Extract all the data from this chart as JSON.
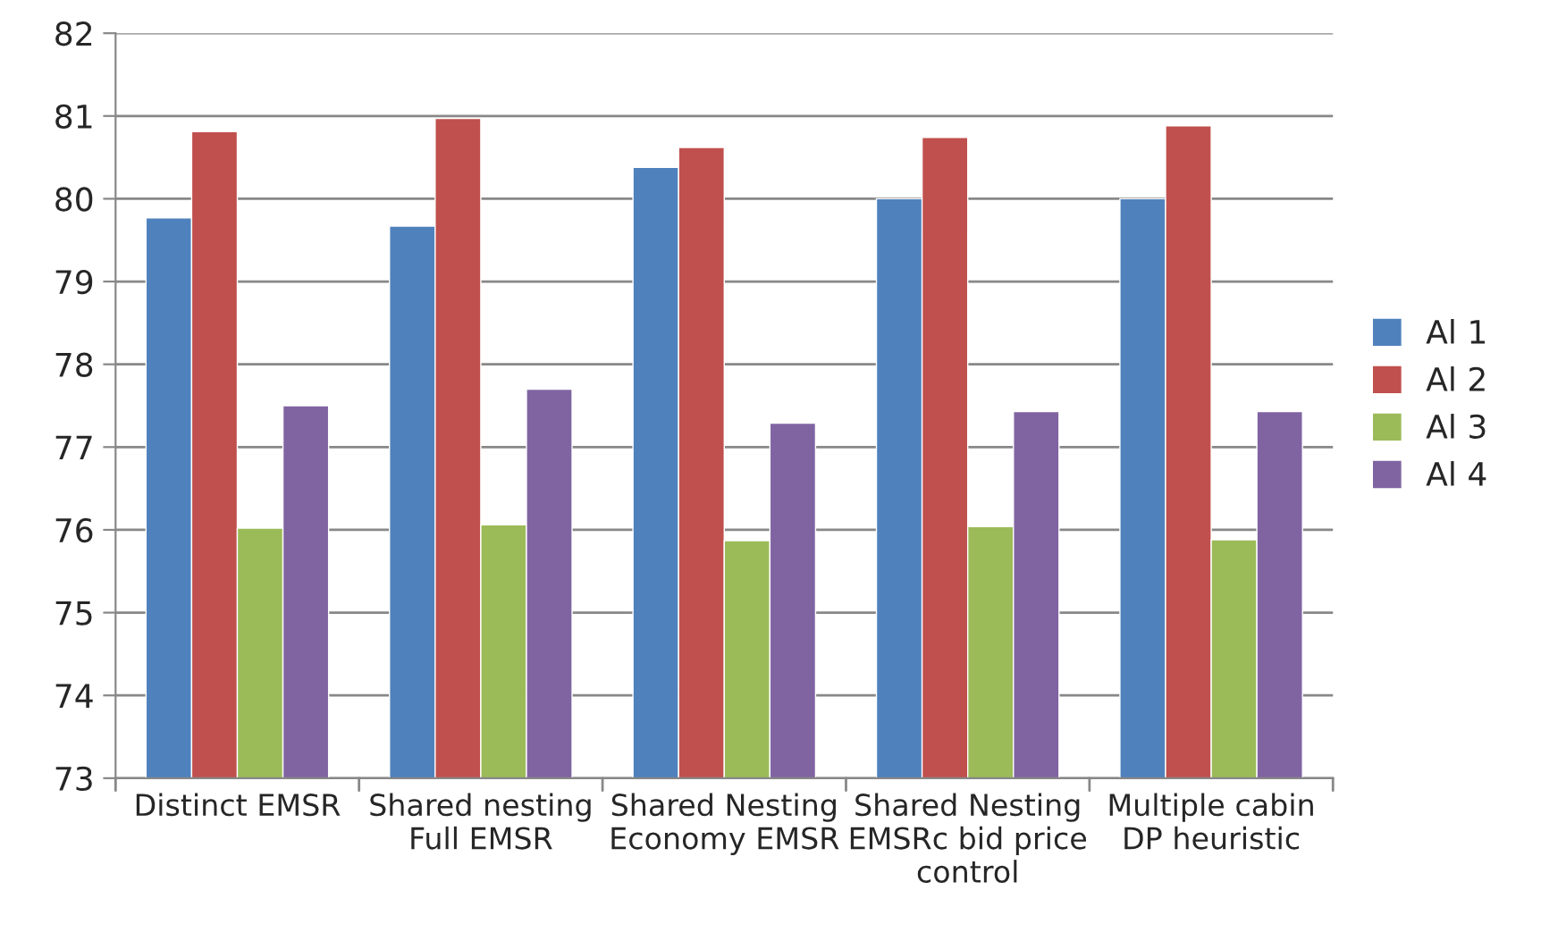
{
  "chart_data": {
    "type": "bar",
    "categories": [
      "Distinct EMSR",
      "Shared nesting\nFull EMSR",
      "Shared Nesting\nEconomy EMSR",
      "Shared Nesting\nEMSRc bid price\ncontrol",
      "Multiple cabin\nDP heuristic"
    ],
    "series": [
      {
        "name": "Al 1",
        "color": "#4f81bd",
        "values": [
          79.77,
          79.67,
          80.38,
          80.0,
          80.0
        ]
      },
      {
        "name": "Al 2",
        "color": "#c0504d",
        "values": [
          80.81,
          80.97,
          80.62,
          80.74,
          80.88
        ]
      },
      {
        "name": "Al 3",
        "color": "#9bbb59",
        "values": [
          76.02,
          76.06,
          75.87,
          76.04,
          75.88
        ]
      },
      {
        "name": "Al 4",
        "color": "#8064a2",
        "values": [
          77.5,
          77.7,
          77.29,
          77.43,
          77.43
        ]
      }
    ],
    "ylim": [
      73,
      82
    ],
    "yticks": [
      73,
      74,
      75,
      76,
      77,
      78,
      79,
      80,
      81,
      82
    ],
    "grid": "y",
    "legend": "right"
  }
}
